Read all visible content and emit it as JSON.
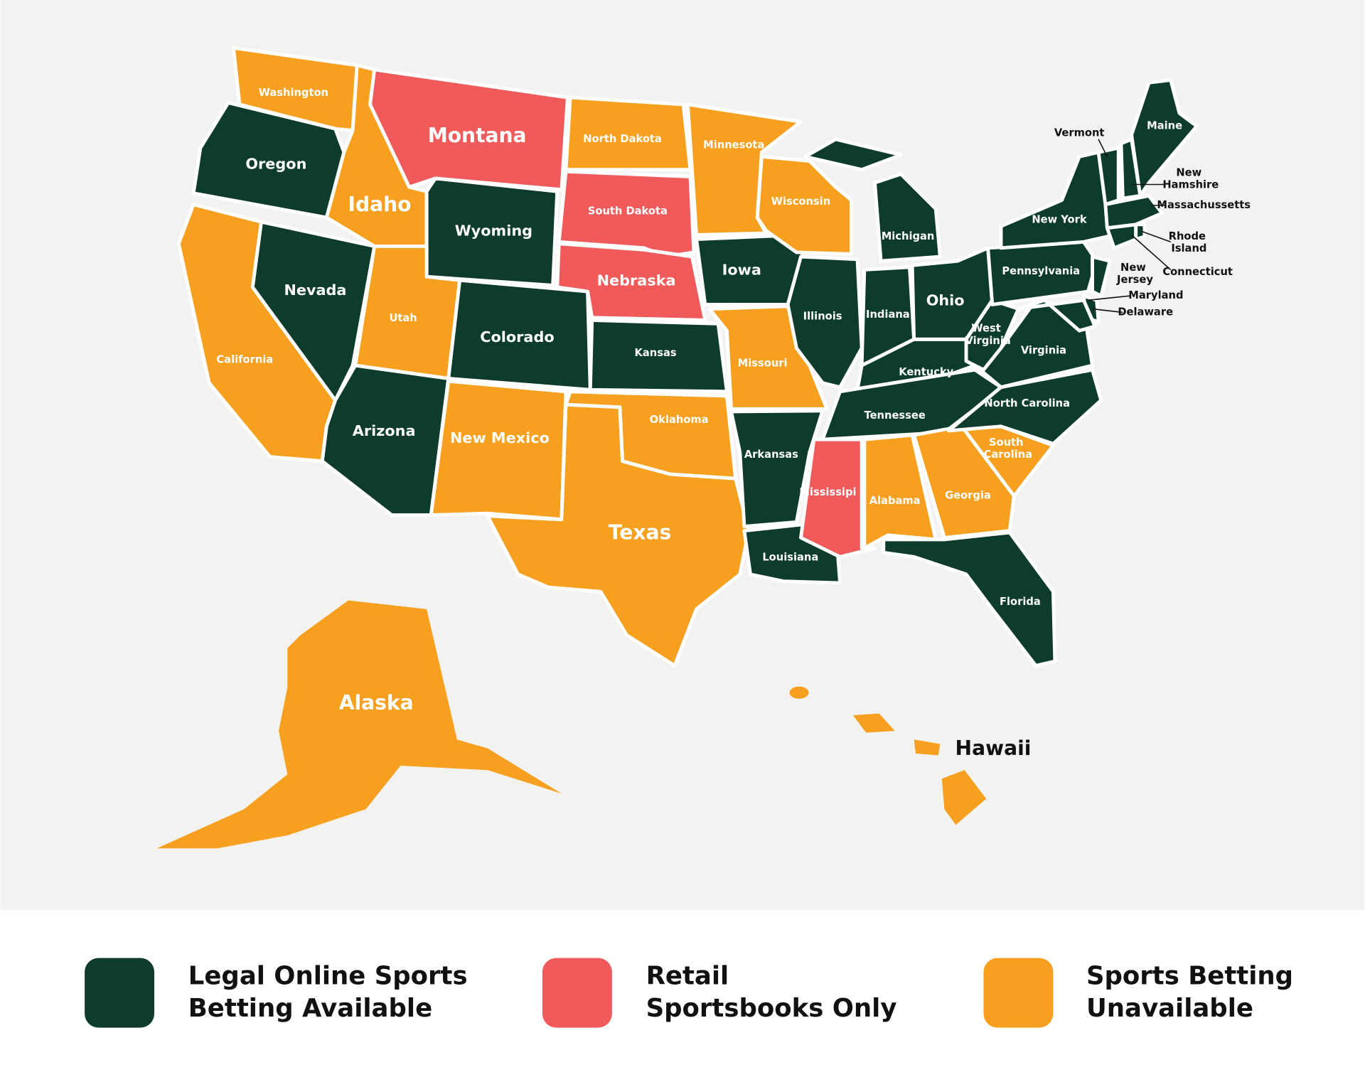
{
  "legend": [
    {
      "label": [
        "Legal Online Sports",
        "Betting Available"
      ],
      "color": "#0d3b2e",
      "states": [
        "Oregon",
        "Nevada",
        "Wyoming",
        "Arizona",
        "Colorado",
        "Kansas",
        "Iowa",
        "Arkansas",
        "Louisiana",
        "Illinois",
        "Michigan",
        "Indiana",
        "Ohio",
        "Kentucky",
        "Tennessee",
        "Florida",
        "North Carolina",
        "Virginia",
        "West Virginia",
        "Pennsylvania",
        "New York",
        "New Jersey",
        "Delaware",
        "Maryland",
        "Connecticut",
        "Rhode Island",
        "Massachussetts",
        "Vermont",
        "New Hamshire",
        "Maine"
      ]
    },
    {
      "label": [
        "Retail",
        "Sportsbooks Only"
      ],
      "color": "#f05a5a",
      "states": [
        "Montana",
        "South Dakota",
        "Nebraska",
        "Mississipi"
      ]
    },
    {
      "label": [
        "Sports Betting",
        "Unavailable"
      ],
      "color": "#f7a020",
      "states": [
        "Washington",
        "California",
        "Idaho",
        "Utah",
        "New Mexico",
        "North Dakota",
        "Oklahoma",
        "Texas",
        "Minnesota",
        "Missouri",
        "Wisconsin",
        "Alabama",
        "Georgia",
        "South Carolina",
        "Alaska",
        "Hawaii"
      ]
    }
  ]
}
